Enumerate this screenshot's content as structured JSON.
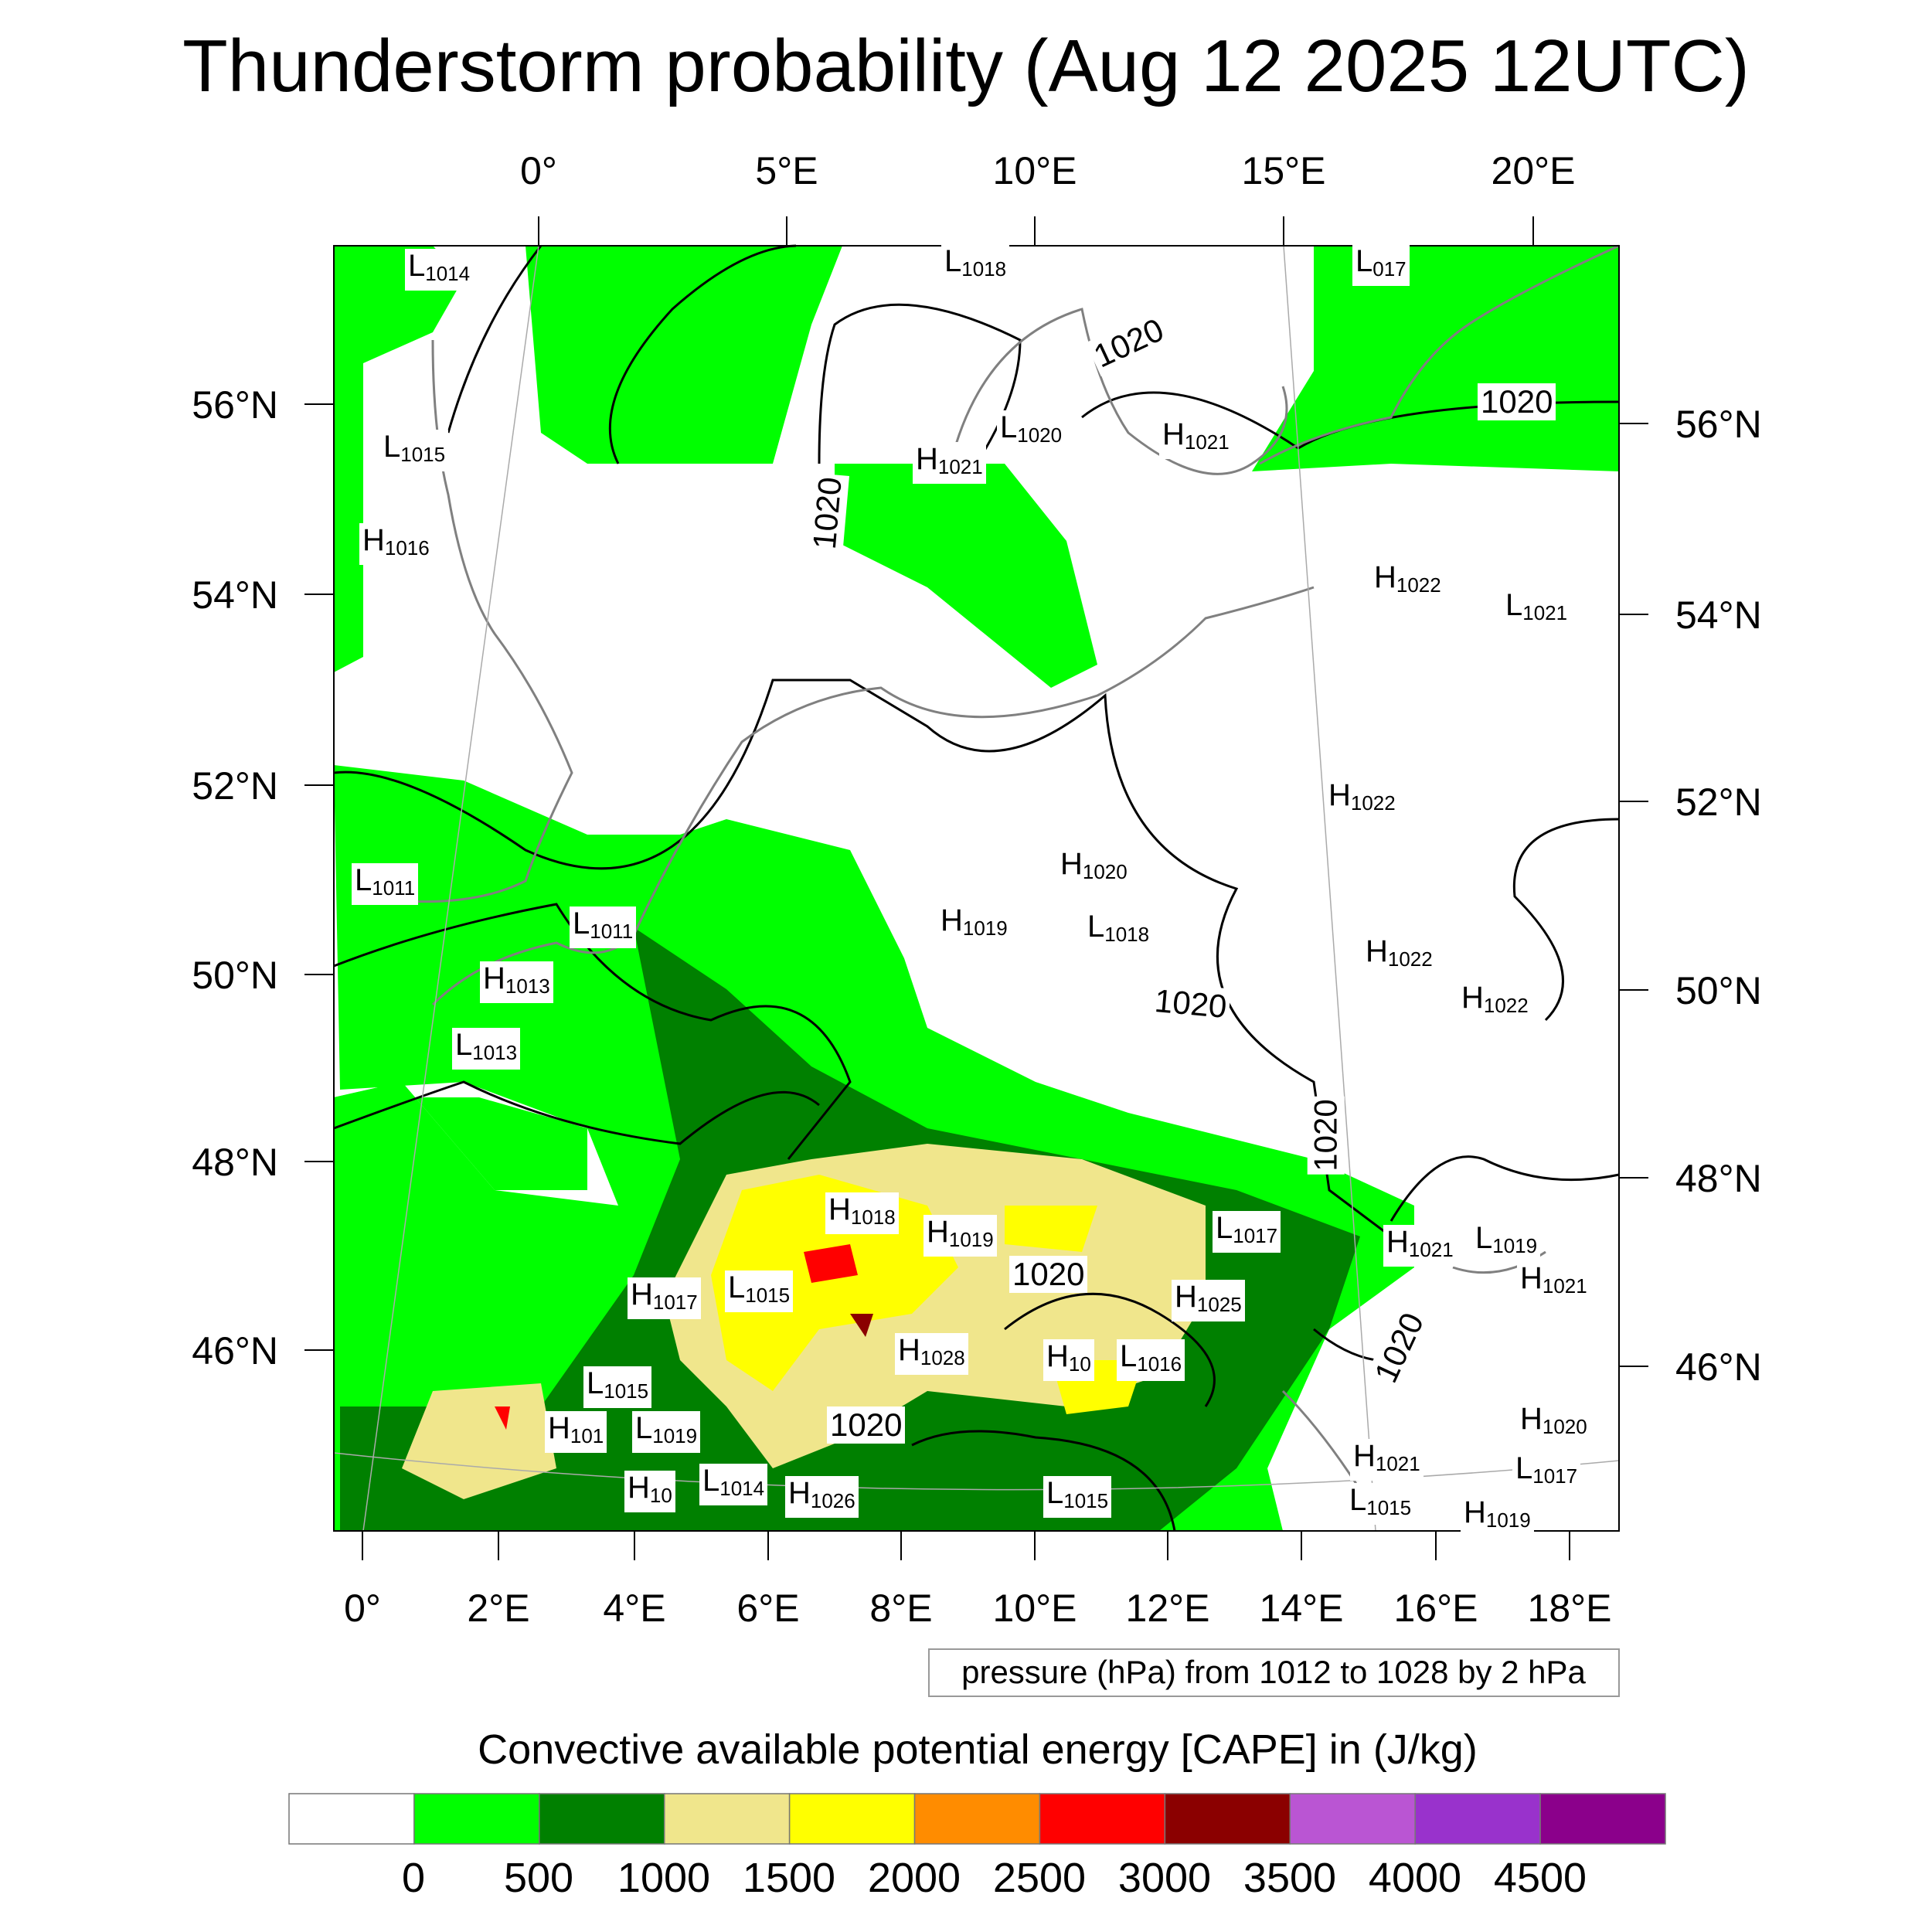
{
  "title": "Thunderstorm probability (Aug 12 2025 12UTC)",
  "top_lon_labels": [
    "0°",
    "5°E",
    "10°E",
    "15°E",
    "20°E"
  ],
  "bottom_lon_labels": [
    "0°",
    "2°E",
    "4°E",
    "6°E",
    "8°E",
    "10°E",
    "12°E",
    "14°E",
    "16°E",
    "18°E"
  ],
  "left_lat_labels": [
    "56°N",
    "54°N",
    "52°N",
    "50°N",
    "48°N",
    "46°N"
  ],
  "right_lat_labels": [
    "56°N",
    "54°N",
    "52°N",
    "50°N",
    "48°N",
    "46°N"
  ],
  "pressure_legend": "pressure (hPa) from 1012 to 1028 by 2 hPa",
  "contour_labels": [
    "1020",
    "1020",
    "1020",
    "1020",
    "1020",
    "1020",
    "1020",
    "1020"
  ],
  "centers": [
    {
      "type": "L",
      "value": "1014"
    },
    {
      "type": "L",
      "value": "1018"
    },
    {
      "type": "L",
      "value": "017"
    },
    {
      "type": "L",
      "value": "1015"
    },
    {
      "type": "H",
      "value": "1016"
    },
    {
      "type": "H",
      "value": "1021"
    },
    {
      "type": "L",
      "value": "1020"
    },
    {
      "type": "H",
      "value": "1021"
    },
    {
      "type": "H",
      "value": "1022"
    },
    {
      "type": "L",
      "value": "1021"
    },
    {
      "type": "H",
      "value": "1022"
    },
    {
      "type": "H",
      "value": "1020"
    },
    {
      "type": "L",
      "value": "1018"
    },
    {
      "type": "H",
      "value": "1019"
    },
    {
      "type": "L",
      "value": "1011"
    },
    {
      "type": "L",
      "value": "1011"
    },
    {
      "type": "H",
      "value": "1013"
    },
    {
      "type": "L",
      "value": "1013"
    },
    {
      "type": "H",
      "value": "1022"
    },
    {
      "type": "H",
      "value": "1022"
    },
    {
      "type": "H",
      "value": "1018"
    },
    {
      "type": "H",
      "value": "1019"
    },
    {
      "type": "L",
      "value": "1017"
    },
    {
      "type": "H",
      "value": "1021"
    },
    {
      "type": "L",
      "value": "1019"
    },
    {
      "type": "H",
      "value": "1021"
    },
    {
      "type": "H",
      "value": "1017"
    },
    {
      "type": "L",
      "value": "1015"
    },
    {
      "type": "H",
      "value": "1025"
    },
    {
      "type": "H",
      "value": "1028"
    },
    {
      "type": "H",
      "value": "10"
    },
    {
      "type": "L",
      "value": "1016"
    },
    {
      "type": "L",
      "value": "1015"
    },
    {
      "type": "H",
      "value": "101"
    },
    {
      "type": "L",
      "value": "1019"
    },
    {
      "type": "H",
      "value": "1020"
    },
    {
      "type": "H",
      "value": "1021"
    },
    {
      "type": "L",
      "value": "1017"
    },
    {
      "type": "H",
      "value": "10"
    },
    {
      "type": "L",
      "value": "1014"
    },
    {
      "type": "H",
      "value": "1026"
    },
    {
      "type": "L",
      "value": "1015"
    },
    {
      "type": "L",
      "value": "1015"
    },
    {
      "type": "H",
      "value": "1019"
    }
  ],
  "colorbar": {
    "title": "Convective available potential energy [CAPE] in (J/kg)",
    "labels": [
      "0",
      "500",
      "1000",
      "1500",
      "2000",
      "2500",
      "3000",
      "3500",
      "4000",
      "4500"
    ],
    "colors": [
      "#ffffff",
      "#00ff00",
      "#008000",
      "#f0e68c",
      "#ffff00",
      "#ff8c00",
      "#ff0000",
      "#8b0000",
      "#ba55d3",
      "#9932cc",
      "#8b008b"
    ]
  }
}
